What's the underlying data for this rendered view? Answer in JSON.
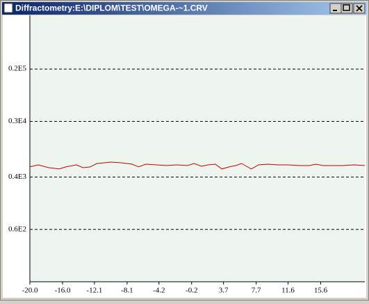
{
  "window": {
    "title": "Diffractometry:E:\\DIPLOM\\TEST\\OMEGA-~1.CRV"
  },
  "chart_data": {
    "type": "line",
    "x": [
      -20.0,
      -19.0,
      -17.7,
      -16.4,
      -15.6,
      -14.3,
      -13.5,
      -12.6,
      -11.8,
      -10.9,
      -10.1,
      -8.8,
      -7.5,
      -6.7,
      -5.8,
      -4.5,
      -3.3,
      -2.0,
      -0.7,
      0.1,
      1.0,
      1.8,
      2.7,
      3.5,
      4.4,
      5.2,
      5.9,
      6.8,
      7.1,
      8.0,
      9.1,
      10.3,
      11.6,
      12.9,
      14.2,
      15.0,
      15.9,
      17.1,
      18.4,
      19.7,
      21.0
    ],
    "values": [
      577,
      621,
      562,
      535,
      577,
      621,
      562,
      577,
      653,
      670,
      687,
      670,
      637,
      577,
      637,
      621,
      606,
      621,
      606,
      653,
      591,
      621,
      637,
      535,
      577,
      606,
      653,
      562,
      535,
      621,
      637,
      621,
      621,
      606,
      606,
      637,
      606,
      606,
      606,
      621,
      606
    ],
    "color": "#c00000",
    "yscale": "log",
    "xlim": [
      -20,
      21
    ],
    "ylim": [
      9,
      140000
    ],
    "xticks": [
      {
        "value": -20,
        "label": "-20.0"
      },
      {
        "value": -16,
        "label": "-16.0"
      },
      -12.1,
      -8.1,
      -4.2,
      -0.2,
      3.7,
      7.7,
      11.6,
      15.6
    ],
    "yticks": [
      {
        "value": 20000,
        "label": "0.2E5"
      },
      {
        "value": 3000,
        "label": "0.3E4"
      },
      {
        "value": 400,
        "label": "0.4E3"
      },
      {
        "value": 60,
        "label": "0.6E2"
      }
    ],
    "grid": true
  }
}
